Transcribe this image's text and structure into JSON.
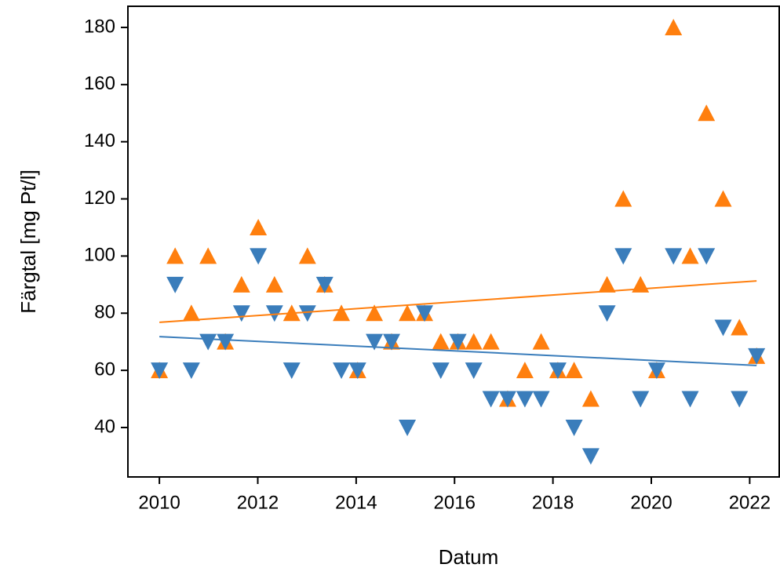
{
  "chart_data": {
    "type": "scatter",
    "xlabel": "Datum",
    "ylabel": "Färgtal [mg Pt/l]",
    "xlim": [
      2009.36,
      2022.6
    ],
    "ylim": [
      22.7,
      187.4
    ],
    "xticks": [
      2010,
      2012,
      2014,
      2016,
      2018,
      2020,
      2022
    ],
    "yticks": [
      40,
      60,
      80,
      100,
      120,
      140,
      160,
      180
    ],
    "series": [
      {
        "color": "#ff7f0e",
        "marker": "triangle-up",
        "x": [
          2010.0,
          2010.32,
          2010.65,
          2010.99,
          2011.34,
          2011.67,
          2012.01,
          2012.34,
          2012.69,
          2013.01,
          2013.36,
          2013.7,
          2014.03,
          2014.37,
          2014.72,
          2015.04,
          2015.39,
          2015.72,
          2016.07,
          2016.39,
          2016.74,
          2017.08,
          2017.43,
          2017.76,
          2018.1,
          2018.43,
          2018.77,
          2019.1,
          2019.43,
          2019.78,
          2020.11,
          2020.45,
          2020.79,
          2021.12,
          2021.46,
          2021.79,
          2022.14
        ],
        "values": [
          60,
          100,
          80,
          100,
          70,
          90,
          110,
          90,
          80,
          100,
          90,
          80,
          60,
          80,
          70,
          80,
          80,
          70,
          70,
          70,
          70,
          50,
          60,
          70,
          60,
          60,
          50,
          90,
          120,
          90,
          60,
          180,
          100,
          150,
          120,
          75,
          65
        ],
        "trend": {
          "x": [
            2010.0,
            2022.14
          ],
          "values": [
            76.8,
            91.3
          ]
        }
      },
      {
        "color": "#3a7dbb",
        "marker": "triangle-down",
        "x": [
          2010.0,
          2010.32,
          2010.65,
          2010.99,
          2011.34,
          2011.67,
          2012.01,
          2012.34,
          2012.69,
          2013.01,
          2013.36,
          2013.7,
          2014.03,
          2014.37,
          2014.72,
          2015.04,
          2015.39,
          2015.72,
          2016.07,
          2016.39,
          2016.74,
          2017.08,
          2017.43,
          2017.76,
          2018.1,
          2018.43,
          2018.77,
          2019.1,
          2019.43,
          2019.78,
          2020.11,
          2020.45,
          2020.79,
          2021.12,
          2021.46,
          2021.79,
          2022.14
        ],
        "values": [
          60,
          90,
          60,
          70,
          70,
          80,
          100,
          80,
          60,
          80,
          90,
          60,
          60,
          70,
          70,
          40,
          80,
          60,
          70,
          60,
          50,
          50,
          50,
          50,
          60,
          40,
          30,
          80,
          100,
          50,
          60,
          100,
          50,
          100,
          75,
          50,
          65
        ],
        "trend": {
          "x": [
            2010.0,
            2022.14
          ],
          "values": [
            71.8,
            61.7
          ]
        }
      }
    ]
  }
}
